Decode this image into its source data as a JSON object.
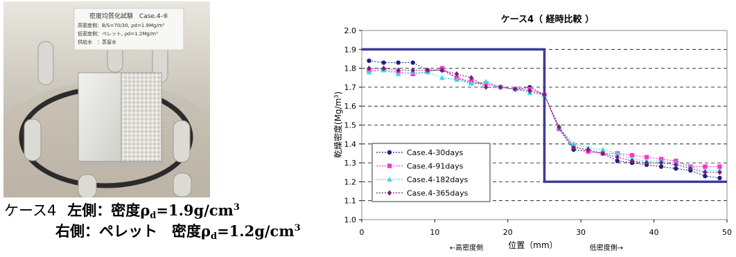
{
  "photo": {
    "label_title": "密度均質化試験　Case.4-⑥",
    "label_line1": "高密度側：B/S=70/30, ρd=1.9Mg/m³",
    "label_line2": "低密度側：ペレット, ρd=1.2Mg/m³",
    "label_line3": "供給水　：蒸留水"
  },
  "caption": {
    "case": "ケース4",
    "left_label": "左側：密度",
    "left_rho": "ρ",
    "left_sub": "d",
    "left_value": "=1.9g/cm",
    "left_sup": "3",
    "right_label": "右側：ペレット　密度",
    "right_rho": "ρ",
    "right_sub": "d",
    "right_value": "=1.2g/cm",
    "right_sup": "3"
  },
  "chart_data": {
    "type": "line",
    "title": "ケース4（ 経時比較 ）",
    "xlabel": "位置（mm）",
    "x_annot_left": "←高密度側",
    "x_annot_right": "低密度側→",
    "ylabel_parts": [
      "乾燥密度(Mg/m",
      "3",
      ")"
    ],
    "xlim": [
      0,
      50
    ],
    "ylim": [
      1.0,
      2.0
    ],
    "xticks": [
      0,
      10,
      20,
      30,
      40,
      50
    ],
    "yticks": [
      1.0,
      1.1,
      1.2,
      1.3,
      1.4,
      1.5,
      1.6,
      1.7,
      1.8,
      1.9,
      2.0
    ],
    "ytick_labels": [
      "1.0",
      "1.1",
      "1.2",
      "1.3",
      "1.4",
      "1.5",
      "1.6",
      "1.7",
      "1.8",
      "1.9",
      "2.0"
    ],
    "grid": "horizontal dashed",
    "legend_position": "bottom-left",
    "reference_line": {
      "x": [
        0,
        25,
        25,
        50
      ],
      "y": [
        1.9,
        1.9,
        1.2,
        1.2
      ],
      "color": "#3b3b9a"
    },
    "series": [
      {
        "name": "Case.4-30days",
        "color": "#1a237e",
        "marker": "circle",
        "x": [
          1,
          3,
          5,
          7,
          9,
          11,
          13,
          15,
          17,
          19,
          21,
          23,
          25,
          27,
          29,
          31,
          33,
          35,
          37,
          39,
          41,
          43,
          45,
          47,
          49
        ],
        "y": [
          1.84,
          1.83,
          1.83,
          1.83,
          1.79,
          1.79,
          1.75,
          1.72,
          1.72,
          1.7,
          1.69,
          1.7,
          1.66,
          1.48,
          1.37,
          1.36,
          1.35,
          1.31,
          1.3,
          1.29,
          1.28,
          1.27,
          1.26,
          1.23,
          1.22
        ]
      },
      {
        "name": "Case.4-91days",
        "color": "#ff33cc",
        "marker": "square",
        "x": [
          1,
          3,
          5,
          7,
          9,
          11,
          13,
          15,
          17,
          19,
          21,
          23,
          25,
          27,
          29,
          31,
          33,
          35,
          37,
          39,
          41,
          43,
          45,
          47,
          49
        ],
        "y": [
          1.79,
          1.79,
          1.78,
          1.77,
          1.78,
          1.8,
          1.75,
          1.73,
          1.72,
          1.7,
          1.69,
          1.69,
          1.66,
          1.48,
          1.39,
          1.36,
          1.35,
          1.35,
          1.34,
          1.33,
          1.32,
          1.31,
          1.28,
          1.28,
          1.28
        ]
      },
      {
        "name": "Case.4-182days",
        "color": "#33e0e0",
        "marker": "triangle",
        "x": [
          1,
          3,
          5,
          7,
          9,
          11,
          13,
          15,
          17,
          19,
          21,
          23,
          25,
          27,
          29,
          31,
          33,
          35,
          37,
          39,
          41,
          43,
          45,
          47,
          49
        ],
        "y": [
          1.78,
          1.79,
          1.77,
          1.78,
          1.78,
          1.75,
          1.74,
          1.72,
          1.73,
          1.7,
          1.69,
          1.67,
          1.66,
          1.49,
          1.4,
          1.38,
          1.37,
          1.35,
          1.32,
          1.31,
          1.31,
          1.3,
          1.28,
          1.26,
          1.26
        ]
      },
      {
        "name": "Case.4-365days",
        "color": "#7b1f7b",
        "marker": "diamond",
        "x": [
          1,
          3,
          5,
          7,
          9,
          11,
          13,
          15,
          17,
          19,
          21,
          23,
          25,
          27,
          29,
          31,
          33,
          35,
          37,
          39,
          41,
          43,
          45,
          47,
          49
        ],
        "y": [
          1.8,
          1.8,
          1.79,
          1.79,
          1.79,
          1.79,
          1.77,
          1.75,
          1.7,
          1.7,
          1.69,
          1.68,
          1.66,
          1.49,
          1.38,
          1.37,
          1.35,
          1.33,
          1.31,
          1.3,
          1.3,
          1.29,
          1.27,
          1.25,
          1.25
        ]
      }
    ]
  }
}
